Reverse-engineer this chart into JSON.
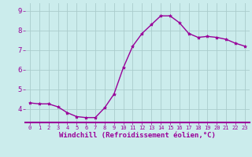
{
  "x": [
    0,
    1,
    2,
    3,
    4,
    5,
    6,
    7,
    8,
    9,
    10,
    11,
    12,
    13,
    14,
    15,
    16,
    17,
    18,
    19,
    20,
    21,
    22,
    23
  ],
  "y": [
    4.3,
    4.25,
    4.25,
    4.1,
    3.8,
    3.6,
    3.55,
    3.55,
    4.05,
    4.75,
    6.1,
    7.2,
    7.85,
    8.3,
    8.75,
    8.75,
    8.4,
    7.85,
    7.65,
    7.7,
    7.65,
    7.55,
    7.35,
    7.2
  ],
  "line_color": "#990099",
  "marker": "*",
  "marker_size": 3,
  "bg_color": "#cbecec",
  "grid_color": "#aacccc",
  "xlabel": "Windchill (Refroidissement éolien,°C)",
  "xlabel_color": "#990099",
  "xlabel_fontsize": 6.5,
  "ylabel_ticks": [
    4,
    5,
    6,
    7,
    8,
    9
  ],
  "xlim": [
    -0.5,
    23.5
  ],
  "ylim": [
    3.3,
    9.4
  ],
  "ytick_labels": [
    "4",
    "5",
    "6",
    "7",
    "8",
    "9"
  ],
  "xtick_labels": [
    "0",
    "1",
    "2",
    "3",
    "4",
    "5",
    "6",
    "7",
    "8",
    "9",
    "10",
    "11",
    "12",
    "13",
    "14",
    "15",
    "16",
    "17",
    "18",
    "19",
    "20",
    "21",
    "22",
    "23"
  ],
  "tick_color": "#990099",
  "tick_fontsize": 5.0,
  "line_width": 1.0,
  "xlabel_fontweight": "bold"
}
